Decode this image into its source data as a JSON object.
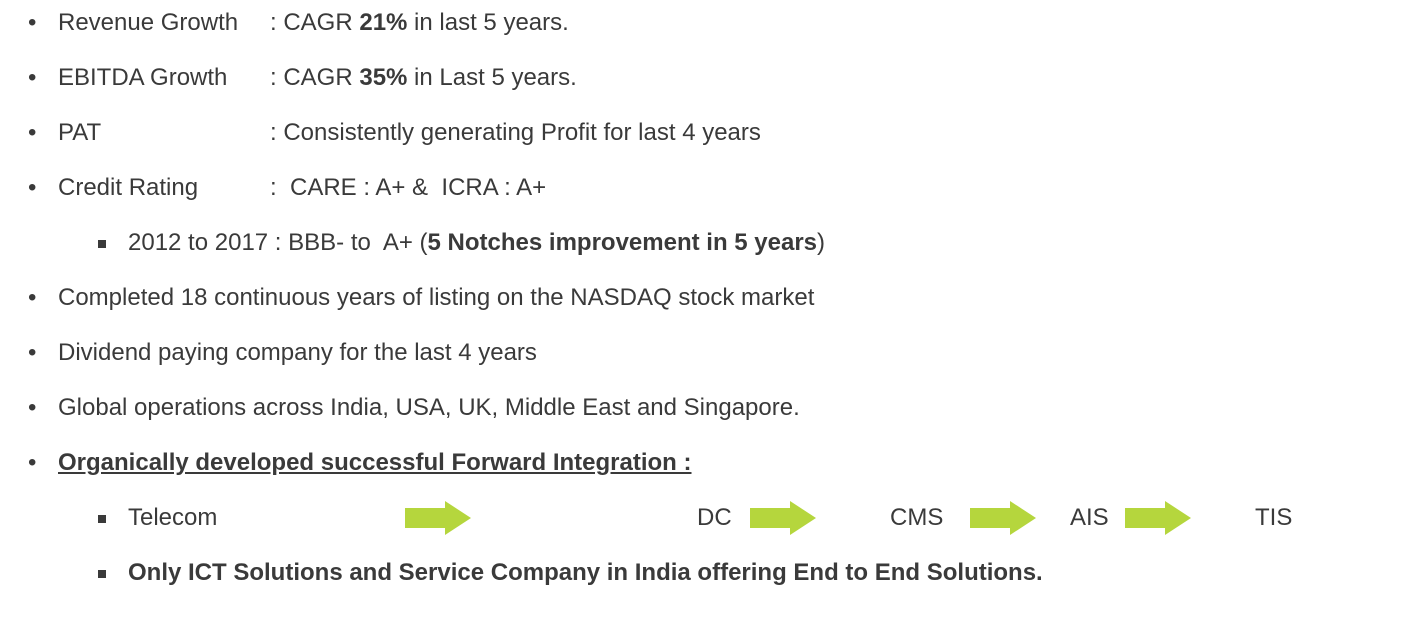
{
  "bullets": [
    {
      "level": 1,
      "label": "Revenue Growth",
      "segments": [
        {
          "text": ": CAGR ",
          "bold": false
        },
        {
          "text": "21%",
          "bold": true
        },
        {
          "text": " in last 5 years.",
          "bold": false
        }
      ]
    },
    {
      "level": 1,
      "label": "EBITDA Growth",
      "segments": [
        {
          "text": ": CAGR ",
          "bold": false
        },
        {
          "text": "35%",
          "bold": true
        },
        {
          "text": " in Last 5 years.",
          "bold": false
        }
      ]
    },
    {
      "level": 1,
      "label": "PAT",
      "segments": [
        {
          "text": ": Consistently generating Profit for last 4 years",
          "bold": false
        }
      ]
    },
    {
      "level": 1,
      "label": "Credit Rating",
      "segments": [
        {
          "text": ":  CARE : A+ &  ICRA : A+",
          "bold": false
        }
      ]
    },
    {
      "level": 2,
      "segments": [
        {
          "text": "2012 to 2017 : BBB- to  A+ (",
          "bold": false
        },
        {
          "text": "5 Notches improvement in 5 years",
          "bold": true
        },
        {
          "text": ")",
          "bold": false
        }
      ]
    },
    {
      "level": 1,
      "segments": [
        {
          "text": "Completed 18 continuous years of listing on the NASDAQ stock market",
          "bold": false
        }
      ]
    },
    {
      "level": 1,
      "segments": [
        {
          "text": "Dividend paying company for the last 4 years",
          "bold": false
        }
      ]
    },
    {
      "level": 1,
      "segments": [
        {
          "text": "Global operations across India, USA, UK, Middle East and Singapore.",
          "bold": false
        }
      ]
    },
    {
      "level": 1,
      "underline": true,
      "segments": [
        {
          "text": "Organically developed successful Forward Integration :",
          "bold": true
        }
      ]
    },
    {
      "level": 2,
      "flow": [
        "Telecom",
        "DC",
        "CMS",
        "AIS",
        "TIS"
      ]
    },
    {
      "level": 2,
      "segments": [
        {
          "text": "Only ICT Solutions and Service Company in India offering End to End Solutions.",
          "bold": true
        }
      ]
    }
  ]
}
